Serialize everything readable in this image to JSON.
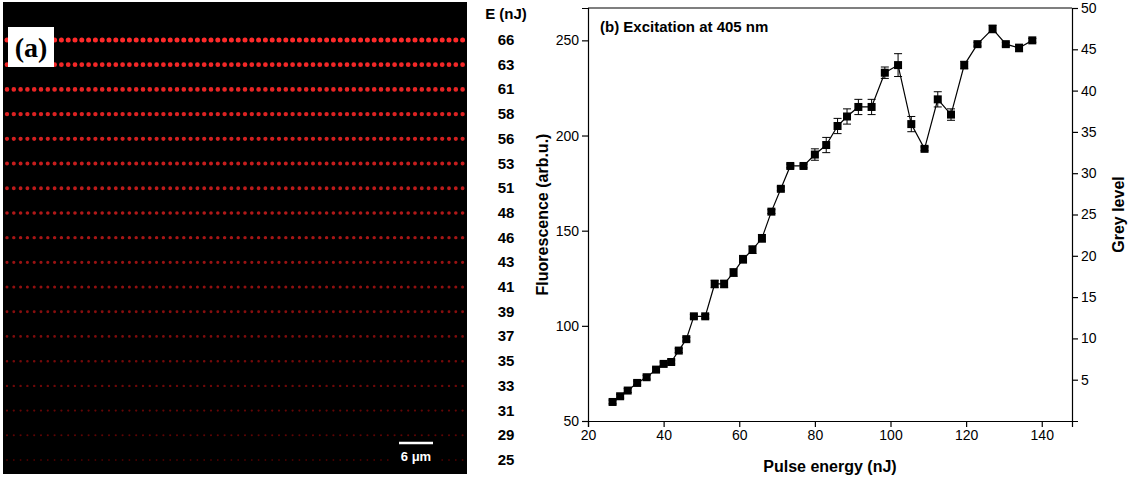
{
  "chart_data": [
    {
      "type": "dot_rows",
      "title": "(a)",
      "ylabel": "E (nJ)",
      "values": [
        66,
        63,
        61,
        58,
        56,
        53,
        51,
        48,
        46,
        43,
        41,
        39,
        37,
        35,
        33,
        31,
        29,
        25
      ],
      "color": "#ff2a2a",
      "annotations": [
        "6 μm"
      ]
    },
    {
      "type": "line",
      "title": "(b) Excitation at 405 nm",
      "xlabel": "Pulse energy (nJ)",
      "ylabel": "Fluorescence (arb.u.)",
      "y2label": "Grey level",
      "x": [
        26.5,
        28.5,
        30.5,
        33,
        35.5,
        38,
        40,
        42,
        44,
        46,
        48,
        51,
        53.5,
        56,
        58.5,
        61,
        63.5,
        66,
        68.5,
        71,
        73.5,
        77,
        80,
        83,
        86,
        88.5,
        91.5,
        95,
        98.5,
        102,
        105.5,
        109,
        112.5,
        116,
        119.5,
        123,
        127,
        130.5,
        134,
        137.5
      ],
      "values": [
        60,
        63,
        66,
        70,
        73,
        77,
        80,
        81,
        87,
        93,
        105,
        105,
        122,
        122,
        128,
        135,
        140,
        146,
        160,
        172,
        184,
        184,
        190,
        195,
        205,
        210,
        215,
        215,
        233,
        237,
        206,
        193,
        219,
        211,
        237,
        248,
        256,
        248,
        246,
        250
      ],
      "errors": [
        1,
        1,
        1,
        1,
        1,
        1,
        1,
        1,
        1,
        1,
        1,
        1,
        2,
        2,
        2,
        2,
        2,
        2,
        1,
        1,
        1,
        1,
        3,
        4,
        4,
        4,
        4,
        4,
        3,
        6,
        4,
        1,
        4,
        3,
        2,
        1,
        2,
        1,
        2,
        1
      ],
      "color": "#000000",
      "marker": "square",
      "line_style": "solid",
      "xlim": [
        20,
        148
      ],
      "xticks": [
        20,
        40,
        60,
        80,
        100,
        120,
        140
      ],
      "ylim": [
        50,
        267
      ],
      "yticks": [
        50,
        100,
        150,
        200,
        250
      ],
      "y2lim": [
        0,
        50
      ],
      "y2ticks": [
        5,
        10,
        15,
        20,
        25,
        30,
        35,
        40,
        45,
        50
      ],
      "grid": false
    }
  ]
}
